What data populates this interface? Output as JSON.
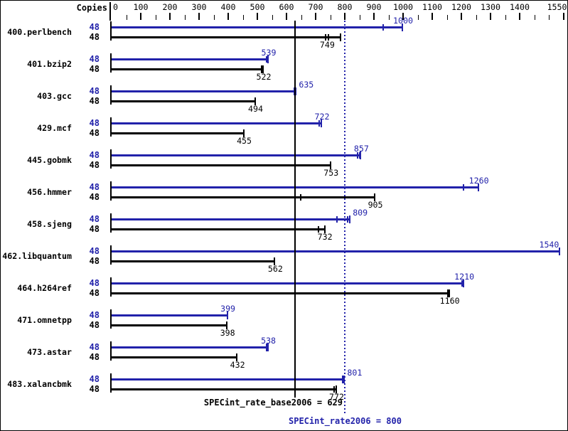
{
  "colors": {
    "peak": "#2222aa",
    "base": "#000000"
  },
  "header": {
    "copies_label": "Copies"
  },
  "summary": {
    "base_text": "SPECint_rate_base2006 = 629",
    "peak_text": "SPECint_rate2006 = 800",
    "base_value": 629,
    "peak_value": 800
  },
  "chart_data": {
    "type": "bar",
    "orientation": "horizontal",
    "xlim": [
      0,
      1550
    ],
    "axis_labels": [
      0,
      100,
      200,
      300,
      400,
      500,
      600,
      700,
      800,
      900,
      1000,
      1100,
      1200,
      1300,
      1400,
      1550
    ],
    "major_ticks": [
      100,
      200,
      300,
      400,
      500,
      600,
      700,
      800,
      900,
      1000,
      1100,
      1200,
      1300,
      1400,
      1550
    ],
    "minor_ticks": [
      50,
      150,
      250,
      350,
      450,
      550,
      650,
      750,
      850,
      950,
      1050,
      1150,
      1250,
      1350,
      1450,
      1500
    ],
    "series": [
      {
        "name": "SPECint_rate2006 (peak)",
        "color_key": "peak"
      },
      {
        "name": "SPECint_rate_base2006 (base)",
        "color_key": "base"
      }
    ],
    "reference_lines": [
      {
        "name": "base-mean",
        "value": 629,
        "style": "solid",
        "color_key": "base"
      },
      {
        "name": "peak-mean",
        "value": 800,
        "style": "dotted",
        "color_key": "peak"
      }
    ],
    "benchmarks": [
      {
        "name": "400.perlbench",
        "copies": 48,
        "peak": {
          "value": 1000,
          "end": 1000,
          "ticks": [
            932
          ],
          "cap": "thin",
          "label_align": "center",
          "label_at": 1000
        },
        "base": {
          "value": 749,
          "end": 788,
          "ticks": [
            735,
            745
          ],
          "cap": "thin",
          "label_align": "center",
          "label_at": 740
        }
      },
      {
        "name": "401.bzip2",
        "copies": 48,
        "peak": {
          "value": 539,
          "end": 539,
          "ticks": [
            531
          ],
          "cap": "thin",
          "label_align": "center",
          "label_at": 539
        },
        "base": {
          "value": 522,
          "end": 522,
          "ticks": [],
          "cap": "thick",
          "label_align": "center",
          "label_at": 522
        }
      },
      {
        "name": "403.gcc",
        "copies": 48,
        "peak": {
          "value": 635,
          "end": 635,
          "ticks": [],
          "cap": "thick",
          "label_align": "left",
          "label_at": 635
        },
        "base": {
          "value": 494,
          "end": 494,
          "ticks": [],
          "cap": "thin",
          "label_align": "center",
          "label_at": 494
        }
      },
      {
        "name": "429.mcf",
        "copies": 48,
        "peak": {
          "value": 722,
          "end": 722,
          "ticks": [
            713
          ],
          "cap": "thin",
          "label_align": "center",
          "label_at": 722
        },
        "base": {
          "value": 455,
          "end": 455,
          "ticks": [],
          "cap": "thin",
          "label_align": "center",
          "label_at": 455
        }
      },
      {
        "name": "445.gobmk",
        "copies": 48,
        "peak": {
          "value": 857,
          "end": 857,
          "ticks": [
            845,
            851
          ],
          "cap": "thin",
          "label_align": "center",
          "label_at": 857
        },
        "base": {
          "value": 753,
          "end": 753,
          "ticks": [],
          "cap": "thin",
          "label_align": "center",
          "label_at": 753
        }
      },
      {
        "name": "456.hmmer",
        "copies": 48,
        "peak": {
          "value": 1260,
          "end": 1260,
          "ticks": [
            1208
          ],
          "cap": "thin",
          "label_align": "center",
          "label_at": 1260
        },
        "base": {
          "value": 905,
          "end": 905,
          "ticks": [
            649
          ],
          "cap": "thin",
          "label_align": "center",
          "label_at": 905
        }
      },
      {
        "name": "458.sjeng",
        "copies": 48,
        "peak": {
          "value": 809,
          "end": 820,
          "ticks": [
            773,
            809
          ],
          "cap": "thin",
          "label_align": "left",
          "label_at": 820
        },
        "base": {
          "value": 732,
          "end": 734,
          "ticks": [
            710
          ],
          "cap": "thin",
          "label_align": "center",
          "label_at": 732
        }
      },
      {
        "name": "462.libquantum",
        "copies": 48,
        "peak": {
          "value": 1540,
          "end": 1540,
          "ticks": [],
          "cap": "thin",
          "label_align": "right",
          "label_at": 1540
        },
        "base": {
          "value": 562,
          "end": 562,
          "ticks": [],
          "cap": "thin",
          "label_align": "center",
          "label_at": 562
        }
      },
      {
        "name": "464.h264ref",
        "copies": 48,
        "peak": {
          "value": 1210,
          "end": 1210,
          "ticks": [
            1202
          ],
          "cap": "thin",
          "label_align": "center",
          "label_at": 1210
        },
        "base": {
          "value": 1160,
          "end": 1160,
          "ticks": [],
          "cap": "thick",
          "label_align": "center",
          "label_at": 1160
        }
      },
      {
        "name": "471.omnetpp",
        "copies": 48,
        "peak": {
          "value": 399,
          "end": 399,
          "ticks": [],
          "cap": "thin",
          "label_align": "center",
          "label_at": 399
        },
        "base": {
          "value": 398,
          "end": 398,
          "ticks": [],
          "cap": "thin",
          "label_align": "center",
          "label_at": 398
        }
      },
      {
        "name": "473.astar",
        "copies": 48,
        "peak": {
          "value": 538,
          "end": 538,
          "ticks": [],
          "cap": "thick",
          "label_align": "center",
          "label_at": 538
        },
        "base": {
          "value": 432,
          "end": 432,
          "ticks": [],
          "cap": "thin",
          "label_align": "center",
          "label_at": 432
        }
      },
      {
        "name": "483.xalancbmk",
        "copies": 48,
        "peak": {
          "value": 801,
          "end": 801,
          "ticks": [],
          "cap": "thick",
          "label_align": "left",
          "label_at": 801
        },
        "base": {
          "value": 772,
          "end": 772,
          "ticks": [
            764
          ],
          "cap": "thin",
          "label_align": "center",
          "label_at": 772
        }
      }
    ]
  }
}
